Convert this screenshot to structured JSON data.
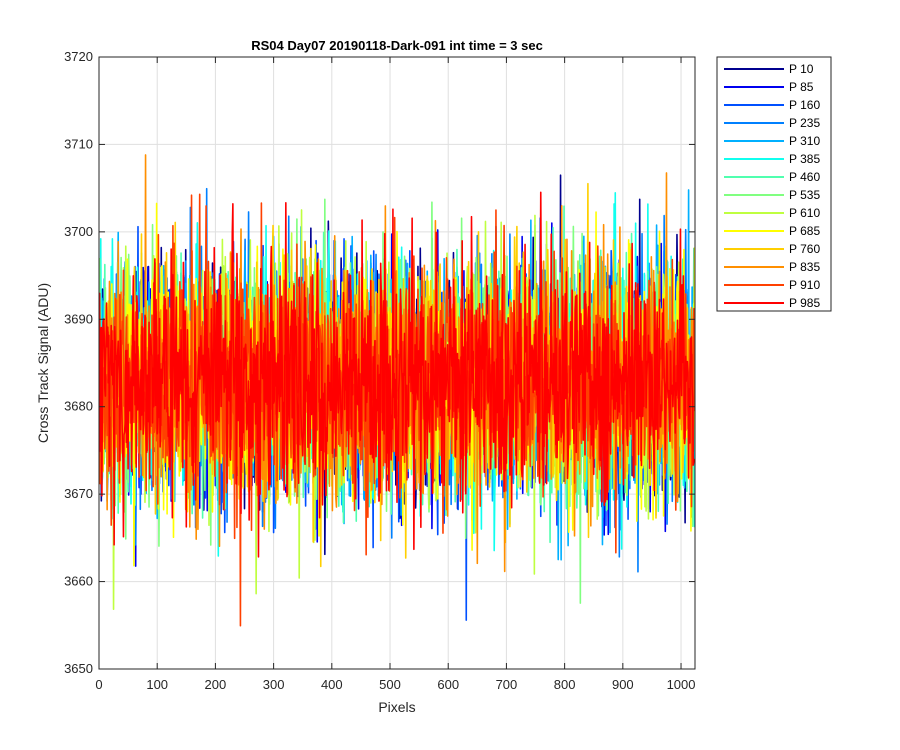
{
  "chart_data": {
    "type": "line",
    "title": "RS04 Day07 20190118-Dark-091 int time = 3 sec",
    "xlabel": "Pixels",
    "ylabel": "Cross Track Signal (ADU)",
    "xlim": [
      0,
      1024
    ],
    "ylim": [
      3650,
      3720
    ],
    "xticks": [
      0,
      100,
      200,
      300,
      400,
      500,
      600,
      700,
      800,
      900,
      1000
    ],
    "yticks": [
      3650,
      3660,
      3670,
      3680,
      3690,
      3700,
      3710,
      3720
    ],
    "xtick_labels": [
      "0",
      "100",
      "200",
      "300",
      "400",
      "500",
      "600",
      "700",
      "800",
      "900",
      "1000"
    ],
    "ytick_labels": [
      "3650",
      "3660",
      "3670",
      "3680",
      "3690",
      "3700",
      "3710",
      "3720"
    ],
    "grid": true,
    "legend_position": "outside-top-right",
    "num_points": 1024,
    "noise_model": {
      "mean": 3683,
      "std": 6.5,
      "min": 3654,
      "max": 3712
    },
    "series": [
      {
        "name": "P 10",
        "color": "#00008f"
      },
      {
        "name": "P 85",
        "color": "#0000ef"
      },
      {
        "name": "P 160",
        "color": "#0050ff"
      },
      {
        "name": "P 235",
        "color": "#0080ff"
      },
      {
        "name": "P 310",
        "color": "#00b0ff"
      },
      {
        "name": "P 385",
        "color": "#10ffef"
      },
      {
        "name": "P 460",
        "color": "#50ffaf"
      },
      {
        "name": "P 535",
        "color": "#80ff80"
      },
      {
        "name": "P 610",
        "color": "#bfff40"
      },
      {
        "name": "P 685",
        "color": "#ffff00"
      },
      {
        "name": "P 760",
        "color": "#ffcf00"
      },
      {
        "name": "P 835",
        "color": "#ff8f00"
      },
      {
        "name": "P 910",
        "color": "#ff4000"
      },
      {
        "name": "P 985",
        "color": "#ff0000"
      }
    ]
  }
}
